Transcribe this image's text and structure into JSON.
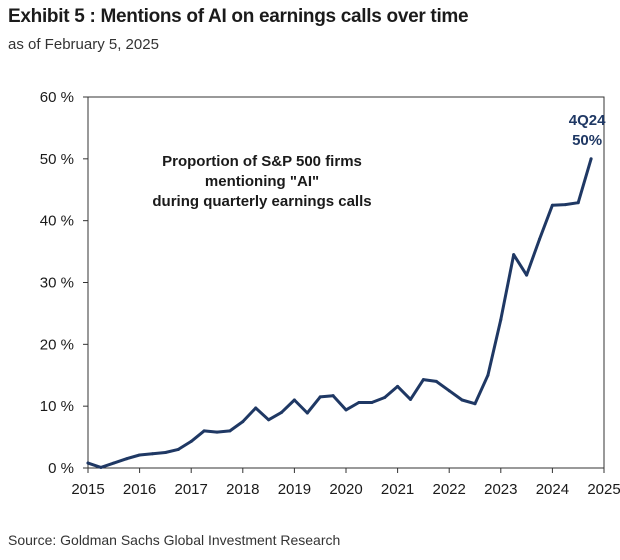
{
  "header": {
    "title": "Exhibit 5 : Mentions of AI on earnings calls over time",
    "subtitle": "as of February 5, 2025"
  },
  "footer": {
    "source": "Source: Goldman Sachs Global Investment Research"
  },
  "colors": {
    "line": "#1f3864",
    "axis": "#333333",
    "end_label": "#1f3864"
  },
  "chart_data": {
    "type": "line",
    "title": "",
    "xlabel": "",
    "ylabel": "",
    "xlim": [
      2015,
      2025
    ],
    "ylim": [
      0,
      60
    ],
    "x_ticks": [
      "2015",
      "2016",
      "2017",
      "2018",
      "2019",
      "2020",
      "2021",
      "2022",
      "2023",
      "2024",
      "2025"
    ],
    "y_ticks": [
      "0 %",
      "10 %",
      "20 %",
      "30 %",
      "40 %",
      "50 %",
      "60 %"
    ],
    "grid": false,
    "legend": "none",
    "annotations": {
      "inner_text": [
        "Proportion of S&P 500 firms",
        "mentioning \"AI\"",
        "during quarterly earnings calls"
      ],
      "end_label_period": "4Q24",
      "end_label_value": "50%"
    },
    "series": [
      {
        "x": [
          2015.0,
          2015.25,
          2015.5,
          2015.75,
          2016.0,
          2016.25,
          2016.5,
          2016.75,
          2017.0,
          2017.25,
          2017.5,
          2017.75,
          2018.0,
          2018.25,
          2018.5,
          2018.75,
          2019.0,
          2019.25,
          2019.5,
          2019.75,
          2020.0,
          2020.25,
          2020.5,
          2020.75,
          2021.0,
          2021.25,
          2021.5,
          2021.75,
          2022.0,
          2022.25,
          2022.5,
          2022.75,
          2023.0,
          2023.25,
          2023.5,
          2023.75,
          2024.0,
          2024.25,
          2024.5,
          2024.75
        ],
        "y": [
          0.8,
          0.1,
          0.8,
          1.5,
          2.1,
          2.3,
          2.5,
          3.0,
          4.3,
          6.0,
          5.8,
          6.0,
          7.5,
          9.7,
          7.8,
          9.0,
          11.0,
          8.9,
          11.5,
          11.7,
          9.4,
          10.6,
          10.6,
          11.4,
          13.2,
          11.1,
          14.3,
          14.0,
          12.5,
          11.0,
          10.4,
          15.0,
          24.0,
          34.5,
          31.2,
          37.0,
          42.5,
          42.6,
          42.9,
          50.0
        ]
      }
    ]
  }
}
